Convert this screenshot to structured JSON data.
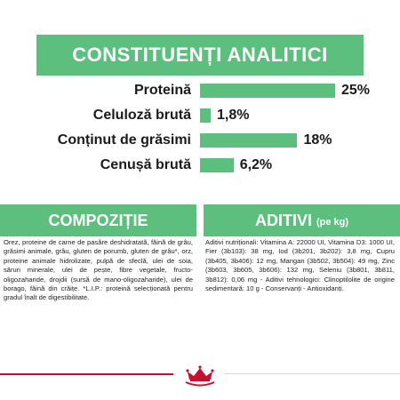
{
  "title": "CONSTITUENȚI ANALITICI",
  "analytic": {
    "max_value": 25,
    "items": [
      {
        "label": "Proteină",
        "value": 25,
        "display": "25%"
      },
      {
        "label": "Celuloză brută",
        "value": 1.8,
        "display": "1,8%"
      },
      {
        "label": "Conținut de grăsimi",
        "value": 18,
        "display": "18%"
      },
      {
        "label": "Cenușă brută",
        "value": 6.2,
        "display": "6,2%"
      }
    ]
  },
  "composition": {
    "title": "COMPOZIȚIE",
    "text": "Orez, proteine de carne de pasăre deshidratată, făină de grâu, grăsimi animale, grâu, gluten de porumb, gluten de grâu*, orz, proteine animale hidrolizate, pulpă de sfeclă, ulei de soia, săruri minerale, ulei de pește, fibre vegetale, fructo-oligozaharide, drojdii (sursă de mano-oligozaharide), ulei de borago, făină din crăițe. *L.I.P.: proteină selecționată pentru gradul înalt de digestibilitate."
  },
  "additives": {
    "title": "ADITIVI",
    "unit": "(pe kg)",
    "text": "Aditivi nutriționali: Vitamina A: 22000 UI, Vitamina D3: 1000 UI, Fier (3b103): 38 mg, Iod (3b201, 3b202): 3,8 mg, Cupru (3b405, 3b406): 12 mg, Mangan (3b502, 3b504): 49 mg, Zinc (3b603, 3b605, 3b606): 132 mg, Seleniu (3b801, 3b811, 3b812): 0,06 mg - Aditivi tehnologici: Clinoptilolite de origine sedimentară: 10 g - Conservanți - Antioxidanți."
  },
  "colors": {
    "accent": "#5cbf7e",
    "brand_red": "#c8102e"
  },
  "logo": {
    "icon": "royal-canin-crown-icon"
  }
}
